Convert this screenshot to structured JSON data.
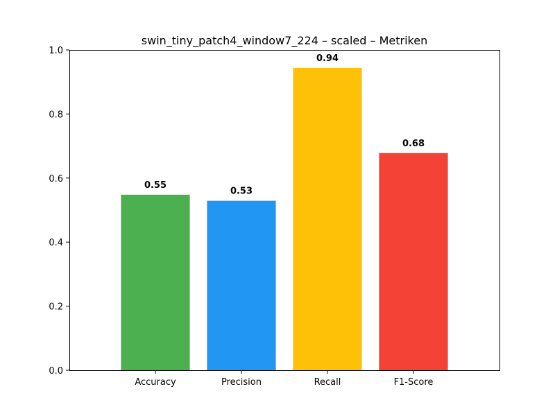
{
  "chart_data": {
    "type": "bar",
    "title": "swin_tiny_patch4_window7_224 – scaled – Metriken",
    "xlabel": "",
    "ylabel": "",
    "categories": [
      "Accuracy",
      "Precision",
      "Recall",
      "F1-Score"
    ],
    "values": [
      0.548,
      0.529,
      0.944,
      0.678
    ],
    "data_labels": [
      "0.55",
      "0.53",
      "0.94",
      "0.68"
    ],
    "colors": [
      "#4caf50",
      "#2196f3",
      "#ffc107",
      "#f44336"
    ],
    "ylim": [
      0,
      1.0
    ],
    "yticks": [
      0.0,
      0.2,
      0.4,
      0.6,
      0.8,
      1.0
    ],
    "ytick_labels": [
      "0.0",
      "0.2",
      "0.4",
      "0.6",
      "0.8",
      "1.0"
    ],
    "grid": false,
    "legend": "none"
  }
}
